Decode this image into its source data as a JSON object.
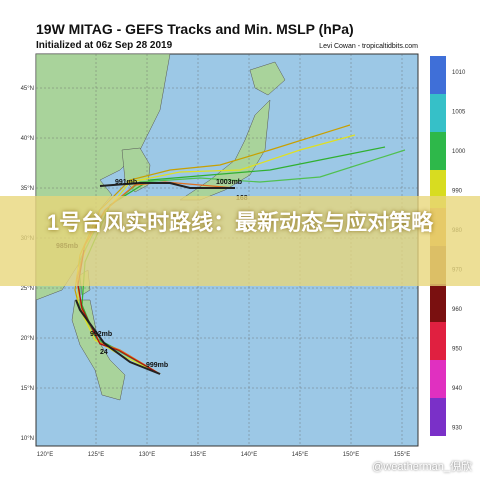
{
  "header": {
    "title": "19W MITAG - GEFS Tracks and Min. MSLP (hPa)",
    "subtitle": "Initialized at 06z Sep 28 2019",
    "credit": "Levi Cowan - tropicaltidbits.com"
  },
  "map": {
    "lat_labels": [
      "45°N",
      "40°N",
      "35°N",
      "30°N",
      "25°N",
      "20°N",
      "15°N",
      "10°N"
    ],
    "lon_labels": [
      "120°E",
      "125°E",
      "130°E",
      "135°E",
      "140°E",
      "145°E",
      "150°E",
      "155°E"
    ],
    "track_labels": [
      "991mb",
      "1003mb",
      "985mb",
      "992mb",
      "999mb",
      "24",
      "168"
    ]
  },
  "colorbar": {
    "labels": [
      "1010",
      "1005",
      "1000",
      "990",
      "980",
      "970",
      "960",
      "950",
      "940",
      "930"
    ]
  },
  "overlay": {
    "headline": "1号台风实时路线：最新动态与应对策略"
  },
  "watermark": "@weatherman_倪欣"
}
